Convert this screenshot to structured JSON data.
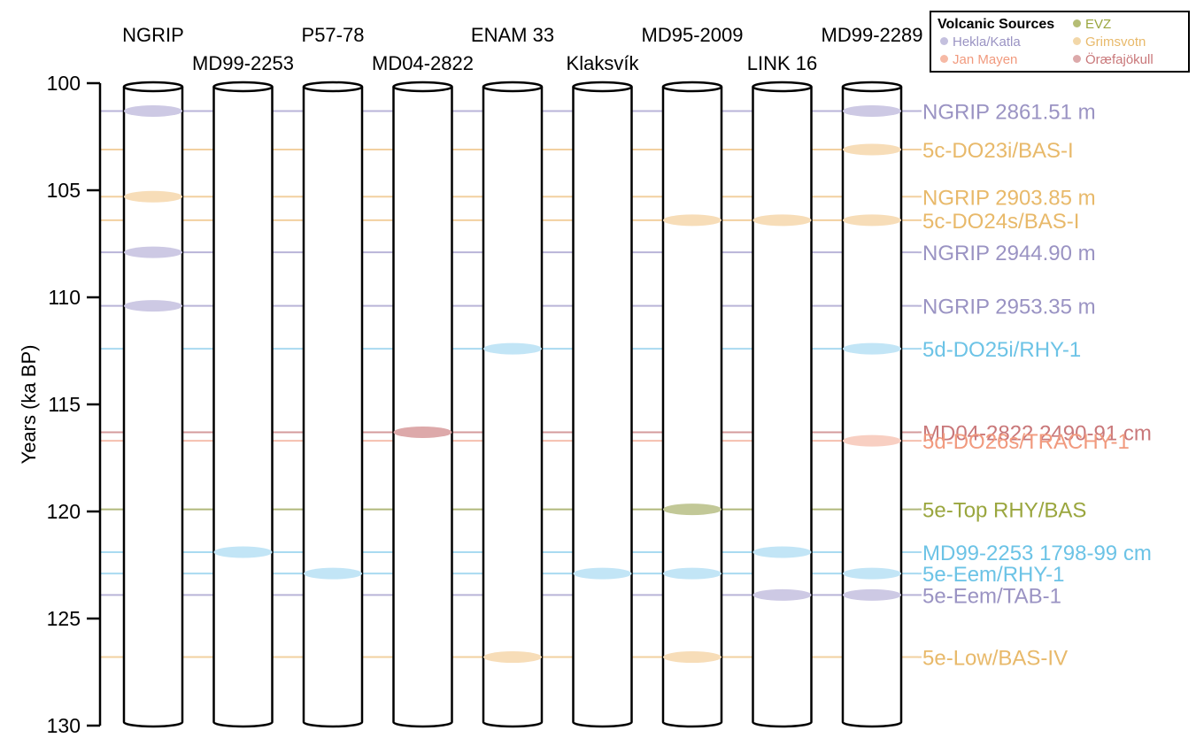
{
  "y_axis": {
    "label": "Years (ka BP)",
    "min": 100,
    "max": 130,
    "ticks": [
      "100",
      "105",
      "110",
      "115",
      "120",
      "125",
      "130"
    ]
  },
  "legend": {
    "title": "Volcanic Sources",
    "items": [
      {
        "name": "EVZ",
        "color": "#9aa63e",
        "dot": "#b5bd74"
      },
      {
        "name": "Hekla/Katla",
        "color": "#9a93c3",
        "dot": "#c4c0de"
      },
      {
        "name": "Grimsvotn",
        "color": "#e8b96a",
        "dot": "#f2d7a8"
      },
      {
        "name": "Jan Mayen",
        "color": "#f19a7e",
        "dot": "#f6b9a5"
      },
      {
        "name": "Öræfajökull",
        "color": "#c9787a",
        "dot": "#dca9aa"
      }
    ]
  },
  "cores": [
    "NGRIP",
    "MD99-2253",
    "P57-78",
    "MD04-2822",
    "ENAM 33",
    "Klaksvík",
    "MD95-2009",
    "LINK 16",
    "MD99-2289"
  ],
  "source_colors": {
    "Hekla/Katla": {
      "line": "#b9b4d8",
      "fill": "#cdc9e4",
      "text": "#9a93c3"
    },
    "Grimsvotn": {
      "line": "#f2d0a0",
      "fill": "#f7ddb8",
      "text": "#e8b96a"
    },
    "EVZ": {
      "line": "#b0b87a",
      "fill": "#c2c897",
      "text": "#9aa63e"
    },
    "Jan Mayen": {
      "line": "#f5bfae",
      "fill": "#f8cfc2",
      "text": "#f19a7e"
    },
    "Öræfajökull": {
      "line": "#d49b9c",
      "fill": "#dda9aa",
      "text": "#c9787a"
    },
    "Rhyolite": {
      "line": "#a9daf1",
      "fill": "#c2e5f6",
      "text": "#6cc3e6"
    }
  },
  "tephra_layers": [
    {
      "label": "NGRIP 2861.51 m",
      "age": 101.3,
      "source": "Hekla/Katla",
      "cores": [
        "NGRIP",
        "MD99-2289"
      ]
    },
    {
      "label": "5c-DO23i/BAS-I",
      "age": 103.1,
      "source": "Grimsvotn",
      "cores": [
        "MD99-2289"
      ]
    },
    {
      "label": "NGRIP 2903.85 m",
      "age": 105.3,
      "source": "Grimsvotn",
      "cores": [
        "NGRIP"
      ]
    },
    {
      "label": "5c-DO24s/BAS-I",
      "age": 106.4,
      "source": "Grimsvotn",
      "cores": [
        "MD95-2009",
        "LINK 16",
        "MD99-2289"
      ]
    },
    {
      "label": "NGRIP 2944.90 m",
      "age": 107.9,
      "source": "Hekla/Katla",
      "cores": [
        "NGRIP"
      ]
    },
    {
      "label": "NGRIP 2953.35 m",
      "age": 110.4,
      "source": "Hekla/Katla",
      "cores": [
        "NGRIP"
      ]
    },
    {
      "label": "5d-DO25i/RHY-1",
      "age": 112.4,
      "source": "Rhyolite",
      "cores": [
        "ENAM 33",
        "MD99-2289"
      ]
    },
    {
      "label": "MD04-2822 2490-91 cm",
      "age": 116.3,
      "source": "Öræfajökull",
      "cores": [
        "MD04-2822"
      ]
    },
    {
      "label": "5d-DO26s/TRACHY-1",
      "age": 116.7,
      "source": "Jan Mayen",
      "cores": [
        "MD99-2289"
      ]
    },
    {
      "label": "5e-Top RHY/BAS",
      "age": 119.9,
      "source": "EVZ",
      "cores": [
        "MD95-2009"
      ]
    },
    {
      "label": "MD99-2253 1798-99 cm",
      "age": 121.9,
      "source": "Rhyolite",
      "cores": [
        "MD99-2253",
        "LINK 16"
      ]
    },
    {
      "label": "5e-Eem/RHY-1",
      "age": 122.9,
      "source": "Rhyolite",
      "cores": [
        "P57-78",
        "Klaksvík",
        "MD95-2009",
        "MD99-2289"
      ]
    },
    {
      "label": "5e-Eem/TAB-1",
      "age": 123.9,
      "source": "Hekla/Katla",
      "cores": [
        "LINK 16",
        "MD99-2289"
      ]
    },
    {
      "label": "5e-Low/BAS-IV",
      "age": 126.8,
      "source": "Grimsvotn",
      "cores": [
        "ENAM 33",
        "MD95-2009"
      ]
    }
  ]
}
